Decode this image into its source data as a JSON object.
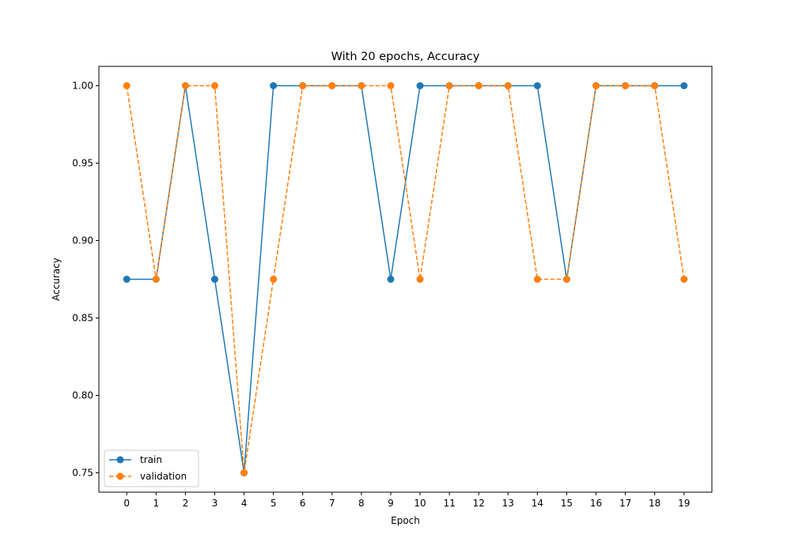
{
  "chart_data": {
    "type": "line",
    "title": "With 20 epochs, Accuracy",
    "xlabel": "Epoch",
    "ylabel": "Accuracy",
    "x": [
      0,
      1,
      2,
      3,
      4,
      5,
      6,
      7,
      8,
      9,
      10,
      11,
      12,
      13,
      14,
      15,
      16,
      17,
      18,
      19
    ],
    "xticks": [
      "0",
      "1",
      "2",
      "3",
      "4",
      "5",
      "6",
      "7",
      "8",
      "9",
      "10",
      "11",
      "12",
      "13",
      "14",
      "15",
      "16",
      "17",
      "18",
      "19"
    ],
    "yticks": [
      "0.75",
      "0.80",
      "0.85",
      "0.90",
      "0.95",
      "1.00"
    ],
    "ytick_values": [
      0.75,
      0.8,
      0.85,
      0.9,
      0.95,
      1.0
    ],
    "xlim": [
      -0.95,
      19.95
    ],
    "ylim": [
      0.7375,
      1.0125
    ],
    "grid": false,
    "legend_position": "lower-left",
    "series": [
      {
        "name": "train",
        "color": "#1f77b4",
        "line_style": "solid",
        "marker": "circle",
        "values": [
          0.875,
          0.875,
          1.0,
          0.875,
          0.75,
          1.0,
          1.0,
          1.0,
          1.0,
          0.875,
          1.0,
          1.0,
          1.0,
          1.0,
          1.0,
          0.875,
          1.0,
          1.0,
          1.0,
          1.0
        ]
      },
      {
        "name": "validation",
        "color": "#ff7f0e",
        "line_style": "dashed",
        "marker": "circle",
        "values": [
          1.0,
          0.875,
          1.0,
          1.0,
          0.75,
          0.875,
          1.0,
          1.0,
          1.0,
          1.0,
          0.875,
          1.0,
          1.0,
          1.0,
          0.875,
          0.875,
          1.0,
          1.0,
          1.0,
          0.875
        ]
      }
    ]
  }
}
